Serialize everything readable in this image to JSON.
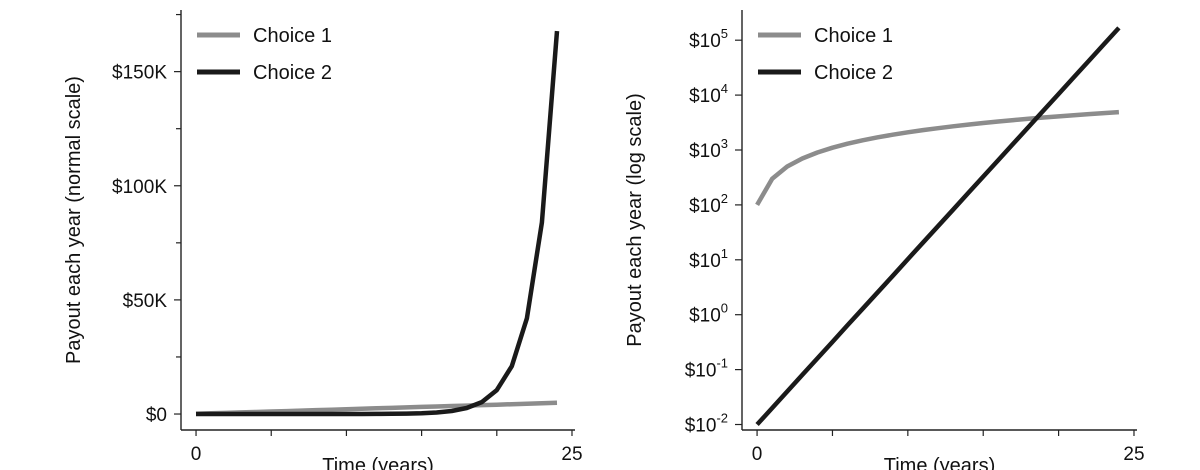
{
  "chart_data": [
    {
      "type": "line",
      "xlabel": "Time (years)",
      "ylabel": "Payout each year (normal scale)",
      "x_ticks": [
        0,
        5,
        10,
        15,
        20,
        25
      ],
      "x_tick_labels": [
        "0",
        "",
        "",
        "",
        "",
        "25"
      ],
      "xlim": [
        -1,
        25.2
      ],
      "ylim": [
        -7000,
        177000
      ],
      "y_scale": "linear",
      "y_ticks": [
        0,
        50000,
        100000,
        150000
      ],
      "y_tick_labels": [
        "$0",
        "$50K",
        "$100K",
        "$150K"
      ],
      "y_minor_ticks": [
        25000,
        75000,
        125000,
        175000
      ],
      "legend_position": "top-left",
      "series": [
        {
          "name": "Choice 1",
          "color": "#8c8c8c",
          "x": [
            0,
            1,
            2,
            3,
            4,
            5,
            6,
            7,
            8,
            9,
            10,
            11,
            12,
            13,
            14,
            15,
            16,
            17,
            18,
            19,
            20,
            21,
            22,
            23,
            24
          ],
          "values": [
            100,
            300,
            500,
            700,
            900,
            1100,
            1300,
            1500,
            1700,
            1900,
            2100,
            2300,
            2500,
            2700,
            2900,
            3100,
            3300,
            3500,
            3700,
            3900,
            4100,
            4300,
            4500,
            4700,
            4900
          ]
        },
        {
          "name": "Choice 2",
          "color": "#1a1a1a",
          "x": [
            0,
            1,
            2,
            3,
            4,
            5,
            6,
            7,
            8,
            9,
            10,
            11,
            12,
            13,
            14,
            15,
            16,
            17,
            18,
            19,
            20,
            21,
            22,
            23,
            24
          ],
          "values": [
            0.01,
            0.02,
            0.04,
            0.08,
            0.16,
            0.32,
            0.64,
            1.28,
            2.56,
            5.12,
            10.24,
            20.48,
            40.96,
            81.92,
            163.84,
            327.68,
            655.36,
            1310.72,
            2621.44,
            5242.88,
            10485.76,
            20971.52,
            41943.04,
            83886.08,
            167772.16
          ]
        }
      ]
    },
    {
      "type": "line",
      "xlabel": "Time (years)",
      "ylabel": "Payout each year (log scale)",
      "x_ticks": [
        0,
        5,
        10,
        15,
        20,
        25
      ],
      "x_tick_labels": [
        "0",
        "",
        "",
        "",
        "",
        "25"
      ],
      "xlim": [
        -1,
        25.2
      ],
      "ylim": [
        -2.1,
        5.55
      ],
      "y_scale": "log10",
      "y_ticks": [
        -2,
        -1,
        0,
        1,
        2,
        3,
        4,
        5
      ],
      "y_tick_labels": [
        {
          "base": "$10",
          "exp": "-2"
        },
        {
          "base": "$10",
          "exp": "-1"
        },
        {
          "base": "$10",
          "exp": "0"
        },
        {
          "base": "$10",
          "exp": "1"
        },
        {
          "base": "$10",
          "exp": "2"
        },
        {
          "base": "$10",
          "exp": "3"
        },
        {
          "base": "$10",
          "exp": "4"
        },
        {
          "base": "$10",
          "exp": "5"
        }
      ],
      "legend_position": "top-left",
      "series": [
        {
          "name": "Choice 1",
          "color": "#8c8c8c",
          "x": [
            0,
            1,
            2,
            3,
            4,
            5,
            6,
            7,
            8,
            9,
            10,
            11,
            12,
            13,
            14,
            15,
            16,
            17,
            18,
            19,
            20,
            21,
            22,
            23,
            24
          ],
          "values": [
            100,
            300,
            500,
            700,
            900,
            1100,
            1300,
            1500,
            1700,
            1900,
            2100,
            2300,
            2500,
            2700,
            2900,
            3100,
            3300,
            3500,
            3700,
            3900,
            4100,
            4300,
            4500,
            4700,
            4900
          ]
        },
        {
          "name": "Choice 2",
          "color": "#1a1a1a",
          "x": [
            0,
            1,
            2,
            3,
            4,
            5,
            6,
            7,
            8,
            9,
            10,
            11,
            12,
            13,
            14,
            15,
            16,
            17,
            18,
            19,
            20,
            21,
            22,
            23,
            24
          ],
          "values": [
            0.01,
            0.02,
            0.04,
            0.08,
            0.16,
            0.32,
            0.64,
            1.28,
            2.56,
            5.12,
            10.24,
            20.48,
            40.96,
            81.92,
            163.84,
            327.68,
            655.36,
            1310.72,
            2621.44,
            5242.88,
            10485.76,
            20971.52,
            41943.04,
            83886.08,
            167772.16
          ]
        }
      ]
    }
  ]
}
